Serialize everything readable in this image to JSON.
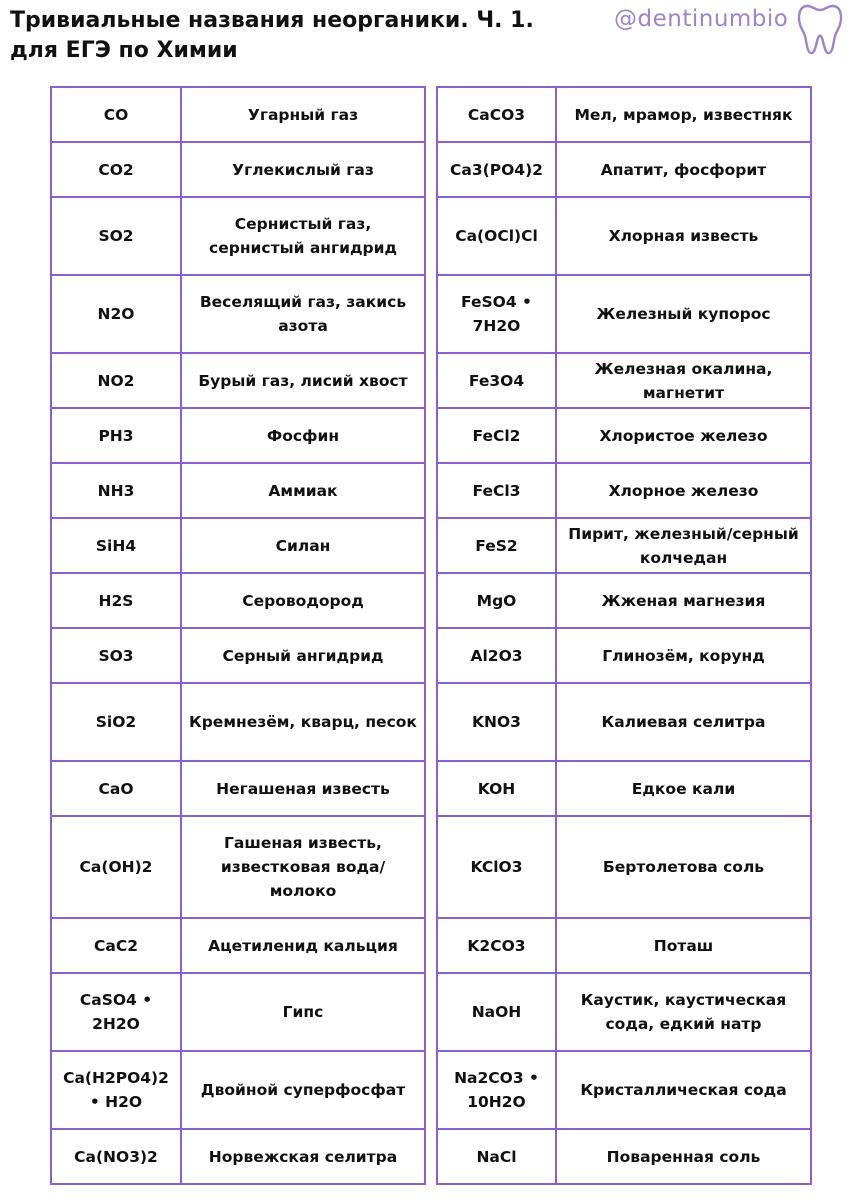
{
  "header": {
    "title_line1": "Тривиальные названия неорганики. Ч. 1.",
    "title_line2": "для ЕГЭ по Химии",
    "brand_handle": "@dentinumbio",
    "brand_icon": "tooth-icon",
    "accent_color": "#8a5fd0"
  },
  "left_table": [
    {
      "formula": "CO",
      "name": "Угарный газ"
    },
    {
      "formula": "CO2",
      "name": "Углекислый газ"
    },
    {
      "formula": "SO2",
      "name": "Сернистый газ, сернистый ангидрид"
    },
    {
      "formula": "N2O",
      "name": "Веселящий газ, закись азота"
    },
    {
      "formula": "NO2",
      "name": "Бурый газ, лисий хвост"
    },
    {
      "formula": "PH3",
      "name": "Фосфин"
    },
    {
      "formula": "NH3",
      "name": "Аммиак"
    },
    {
      "formula": "SiH4",
      "name": "Силан"
    },
    {
      "formula": "H2S",
      "name": "Сероводород"
    },
    {
      "formula": "SO3",
      "name": "Серный ангидрид"
    },
    {
      "formula": "SiO2",
      "name": "Кремнезём, кварц, песок"
    },
    {
      "formula": "CaO",
      "name": "Негашеная известь"
    },
    {
      "formula": "Ca(OH)2",
      "name": "Гашеная известь, известковая вода/ молоко"
    },
    {
      "formula": "CaC2",
      "name": "Ацетиленид кальция"
    },
    {
      "formula": "CaSO4 • 2H2O",
      "name": "Гипс"
    },
    {
      "formula": "Ca(H2PO4)2 • H2O",
      "name": "Двойной суперфосфат"
    },
    {
      "formula": "Ca(NO3)2",
      "name": "Норвежская селитра"
    }
  ],
  "right_table": [
    {
      "formula": "CaCO3",
      "name": "Мел, мрамор, известняк"
    },
    {
      "formula": "Ca3(PO4)2",
      "name": "Апатит, фосфорит"
    },
    {
      "formula": "Ca(OCl)Cl",
      "name": "Хлорная известь"
    },
    {
      "formula": "FeSO4 • 7H2O",
      "name": "Железный купорос"
    },
    {
      "formula": "Fe3O4",
      "name": "Железная окалина, магнетит"
    },
    {
      "formula": "FeCl2",
      "name": "Хлористое железо"
    },
    {
      "formula": "FeCl3",
      "name": "Хлорное железо"
    },
    {
      "formula": "FeS2",
      "name": "Пирит, железный/серный колчедан"
    },
    {
      "formula": "MgO",
      "name": "Жженая магнезия"
    },
    {
      "formula": "Al2O3",
      "name": "Глинозём, корунд"
    },
    {
      "formula": "KNO3",
      "name": "Калиевая селитра"
    },
    {
      "formula": "KOH",
      "name": "Едкое кали"
    },
    {
      "formula": "KClO3",
      "name": "Бертолетова соль"
    },
    {
      "formula": "K2CO3",
      "name": "Поташ"
    },
    {
      "formula": "NaOH",
      "name": "Каустик, каустическая сода, едкий натр"
    },
    {
      "formula": "Na2CO3 • 10H2O",
      "name": "Кристаллическая сода"
    },
    {
      "formula": "NaCl",
      "name": "Поваренная соль"
    }
  ]
}
